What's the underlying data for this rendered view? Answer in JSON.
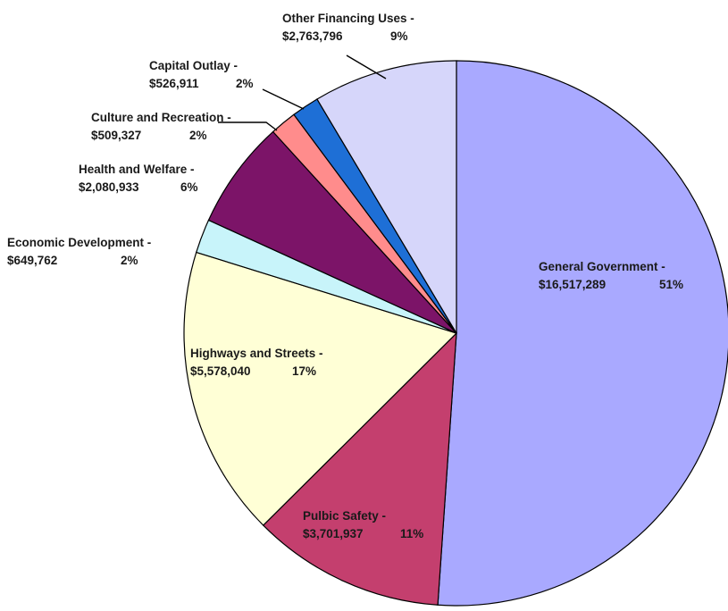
{
  "chart_data": {
    "type": "pie",
    "title": "",
    "start_angle_deg": 0,
    "direction": "clockwise",
    "slices": [
      {
        "category": "General Government -",
        "amount": "$16,517,289",
        "pct_label": "51%",
        "value": 16517289,
        "color": "#a9a9ff"
      },
      {
        "category": "Pulbic Safety -",
        "amount": "$3,701,937",
        "pct_label": "11%",
        "value": 3701937,
        "color": "#c43f6e"
      },
      {
        "category": "Highways and Streets -",
        "amount": "$5,578,040",
        "pct_label": "17%",
        "value": 5578040,
        "color": "#ffffd6"
      },
      {
        "category": "Economic Development -",
        "amount": "$649,762",
        "pct_label": "2%",
        "value": 649762,
        "color": "#c8f4fa"
      },
      {
        "category": "Health and Welfare -",
        "amount": "$2,080,933",
        "pct_label": "6%",
        "value": 2080933,
        "color": "#7c1468"
      },
      {
        "category": "Culture and Recreation -",
        "amount": "$509,327",
        "pct_label": "2%",
        "value": 509327,
        "color": "#ff8c8c"
      },
      {
        "category": "Capital Outlay -",
        "amount": "$526,911",
        "pct_label": "2%",
        "value": 526911,
        "color": "#1e6fd6"
      },
      {
        "category": "Other Financing Uses -",
        "amount": "$2,763,796",
        "pct_label": "9%",
        "value": 2763796,
        "color": "#d6d6fa"
      }
    ]
  }
}
